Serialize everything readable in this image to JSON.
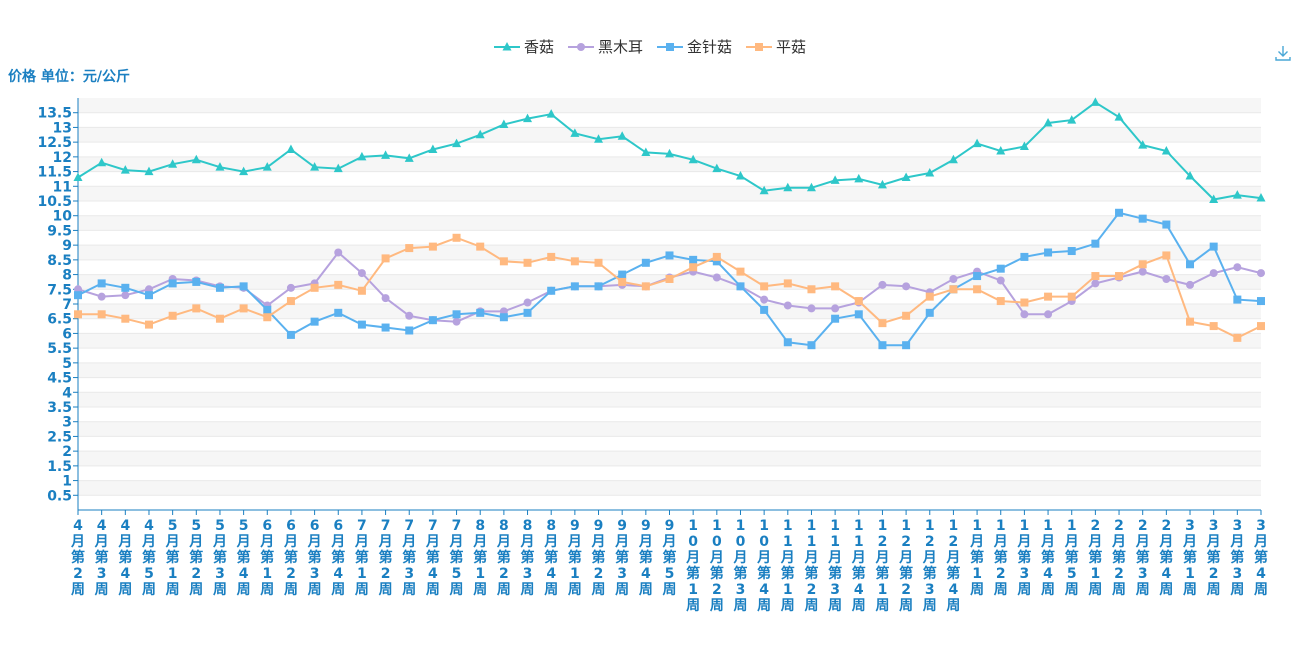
{
  "chart_data": {
    "type": "line",
    "ylabel": "价格 单位：元/公斤",
    "ylim": [
      0,
      14
    ],
    "yticks": [
      0.5,
      1,
      1.5,
      2,
      2.5,
      3,
      3.5,
      4,
      4.5,
      5,
      5.5,
      6,
      6.5,
      7,
      7.5,
      8,
      8.5,
      9,
      9.5,
      10,
      10.5,
      11,
      11.5,
      12,
      12.5,
      13,
      13.5
    ],
    "grid": true,
    "legend": "top-center",
    "categories": [
      "4月第2周",
      "4月第3周",
      "4月第4周",
      "4月第5周",
      "5月第1周",
      "5月第2周",
      "5月第3周",
      "5月第4周",
      "6月第1周",
      "6月第2周",
      "6月第3周",
      "6月第4周",
      "7月第1周",
      "7月第2周",
      "7月第3周",
      "7月第4周",
      "7月第5周",
      "8月第1周",
      "8月第2周",
      "8月第3周",
      "8月第4周",
      "9月第1周",
      "9月第2周",
      "9月第3周",
      "9月第4周",
      "9月第5周",
      "10月第1周",
      "10月第2周",
      "10月第3周",
      "10月第4周",
      "11月第1周",
      "11月第2周",
      "11月第3周",
      "11月第4周",
      "12月第1周",
      "12月第2周",
      "12月第3周",
      "12月第4周",
      "1月第1周",
      "1月第2周",
      "1月第3周",
      "1月第4周",
      "1月第5周",
      "2月第1周",
      "2月第2周",
      "2月第3周",
      "2月第4周",
      "3月第1周",
      "3月第2周",
      "3月第3周",
      "3月第4周"
    ],
    "series": [
      {
        "name": "香菇",
        "color": "#2ec7c9",
        "marker": "triangle",
        "values": [
          11.3,
          11.8,
          11.55,
          11.5,
          11.75,
          11.9,
          11.65,
          11.5,
          11.65,
          12.25,
          11.65,
          11.6,
          12.0,
          12.05,
          11.95,
          12.25,
          12.45,
          12.75,
          13.1,
          13.3,
          13.45,
          12.8,
          12.6,
          12.7,
          12.15,
          12.1,
          11.9,
          11.6,
          11.35,
          10.85,
          10.95,
          10.95,
          11.2,
          11.25,
          11.05,
          11.3,
          11.45,
          11.9,
          12.45,
          12.2,
          12.35,
          13.15,
          13.25,
          13.85,
          13.35,
          12.4,
          12.2,
          11.35,
          10.55,
          10.7,
          10.6
        ]
      },
      {
        "name": "黑木耳",
        "color": "#b6a2de",
        "marker": "circle",
        "values": [
          7.5,
          7.25,
          7.3,
          7.5,
          7.85,
          7.8,
          7.6,
          7.55,
          6.95,
          7.55,
          7.7,
          8.75,
          8.05,
          7.2,
          6.6,
          6.45,
          6.4,
          6.75,
          6.75,
          7.05,
          7.45,
          7.6,
          7.6,
          7.65,
          7.6,
          7.9,
          8.1,
          7.9,
          7.6,
          7.15,
          6.95,
          6.85,
          6.85,
          7.05,
          7.65,
          7.6,
          7.4,
          7.85,
          8.1,
          7.8,
          6.65,
          6.65,
          7.1,
          7.7,
          7.9,
          8.1,
          7.85,
          7.65,
          8.05,
          8.25,
          8.05
        ]
      },
      {
        "name": "金针菇",
        "color": "#5ab1ef",
        "marker": "square",
        "values": [
          7.3,
          7.7,
          7.55,
          7.3,
          7.7,
          7.75,
          7.55,
          7.6,
          6.8,
          5.95,
          6.4,
          6.7,
          6.3,
          6.2,
          6.1,
          6.45,
          6.65,
          6.7,
          6.55,
          6.7,
          7.45,
          7.6,
          7.6,
          8.0,
          8.4,
          8.65,
          8.5,
          8.45,
          7.6,
          6.8,
          5.7,
          5.6,
          6.5,
          6.65,
          5.6,
          5.6,
          6.7,
          7.5,
          7.95,
          8.2,
          8.6,
          8.75,
          8.8,
          9.05,
          10.1,
          9.9,
          9.7,
          8.35,
          8.95,
          7.15,
          7.1
        ]
      },
      {
        "name": "平菇",
        "color": "#ffb980",
        "marker": "square",
        "values": [
          6.65,
          6.65,
          6.5,
          6.3,
          6.6,
          6.85,
          6.5,
          6.85,
          6.55,
          7.1,
          7.55,
          7.65,
          7.45,
          8.55,
          8.9,
          8.95,
          9.25,
          8.95,
          8.45,
          8.4,
          8.6,
          8.45,
          8.4,
          7.75,
          7.6,
          7.85,
          8.25,
          8.6,
          8.1,
          7.6,
          7.7,
          7.5,
          7.6,
          7.1,
          6.35,
          6.6,
          7.25,
          7.5,
          7.5,
          7.1,
          7.05,
          7.25,
          7.25,
          7.95,
          7.95,
          8.35,
          8.65,
          6.4,
          6.25,
          5.85,
          6.25
        ]
      }
    ]
  }
}
